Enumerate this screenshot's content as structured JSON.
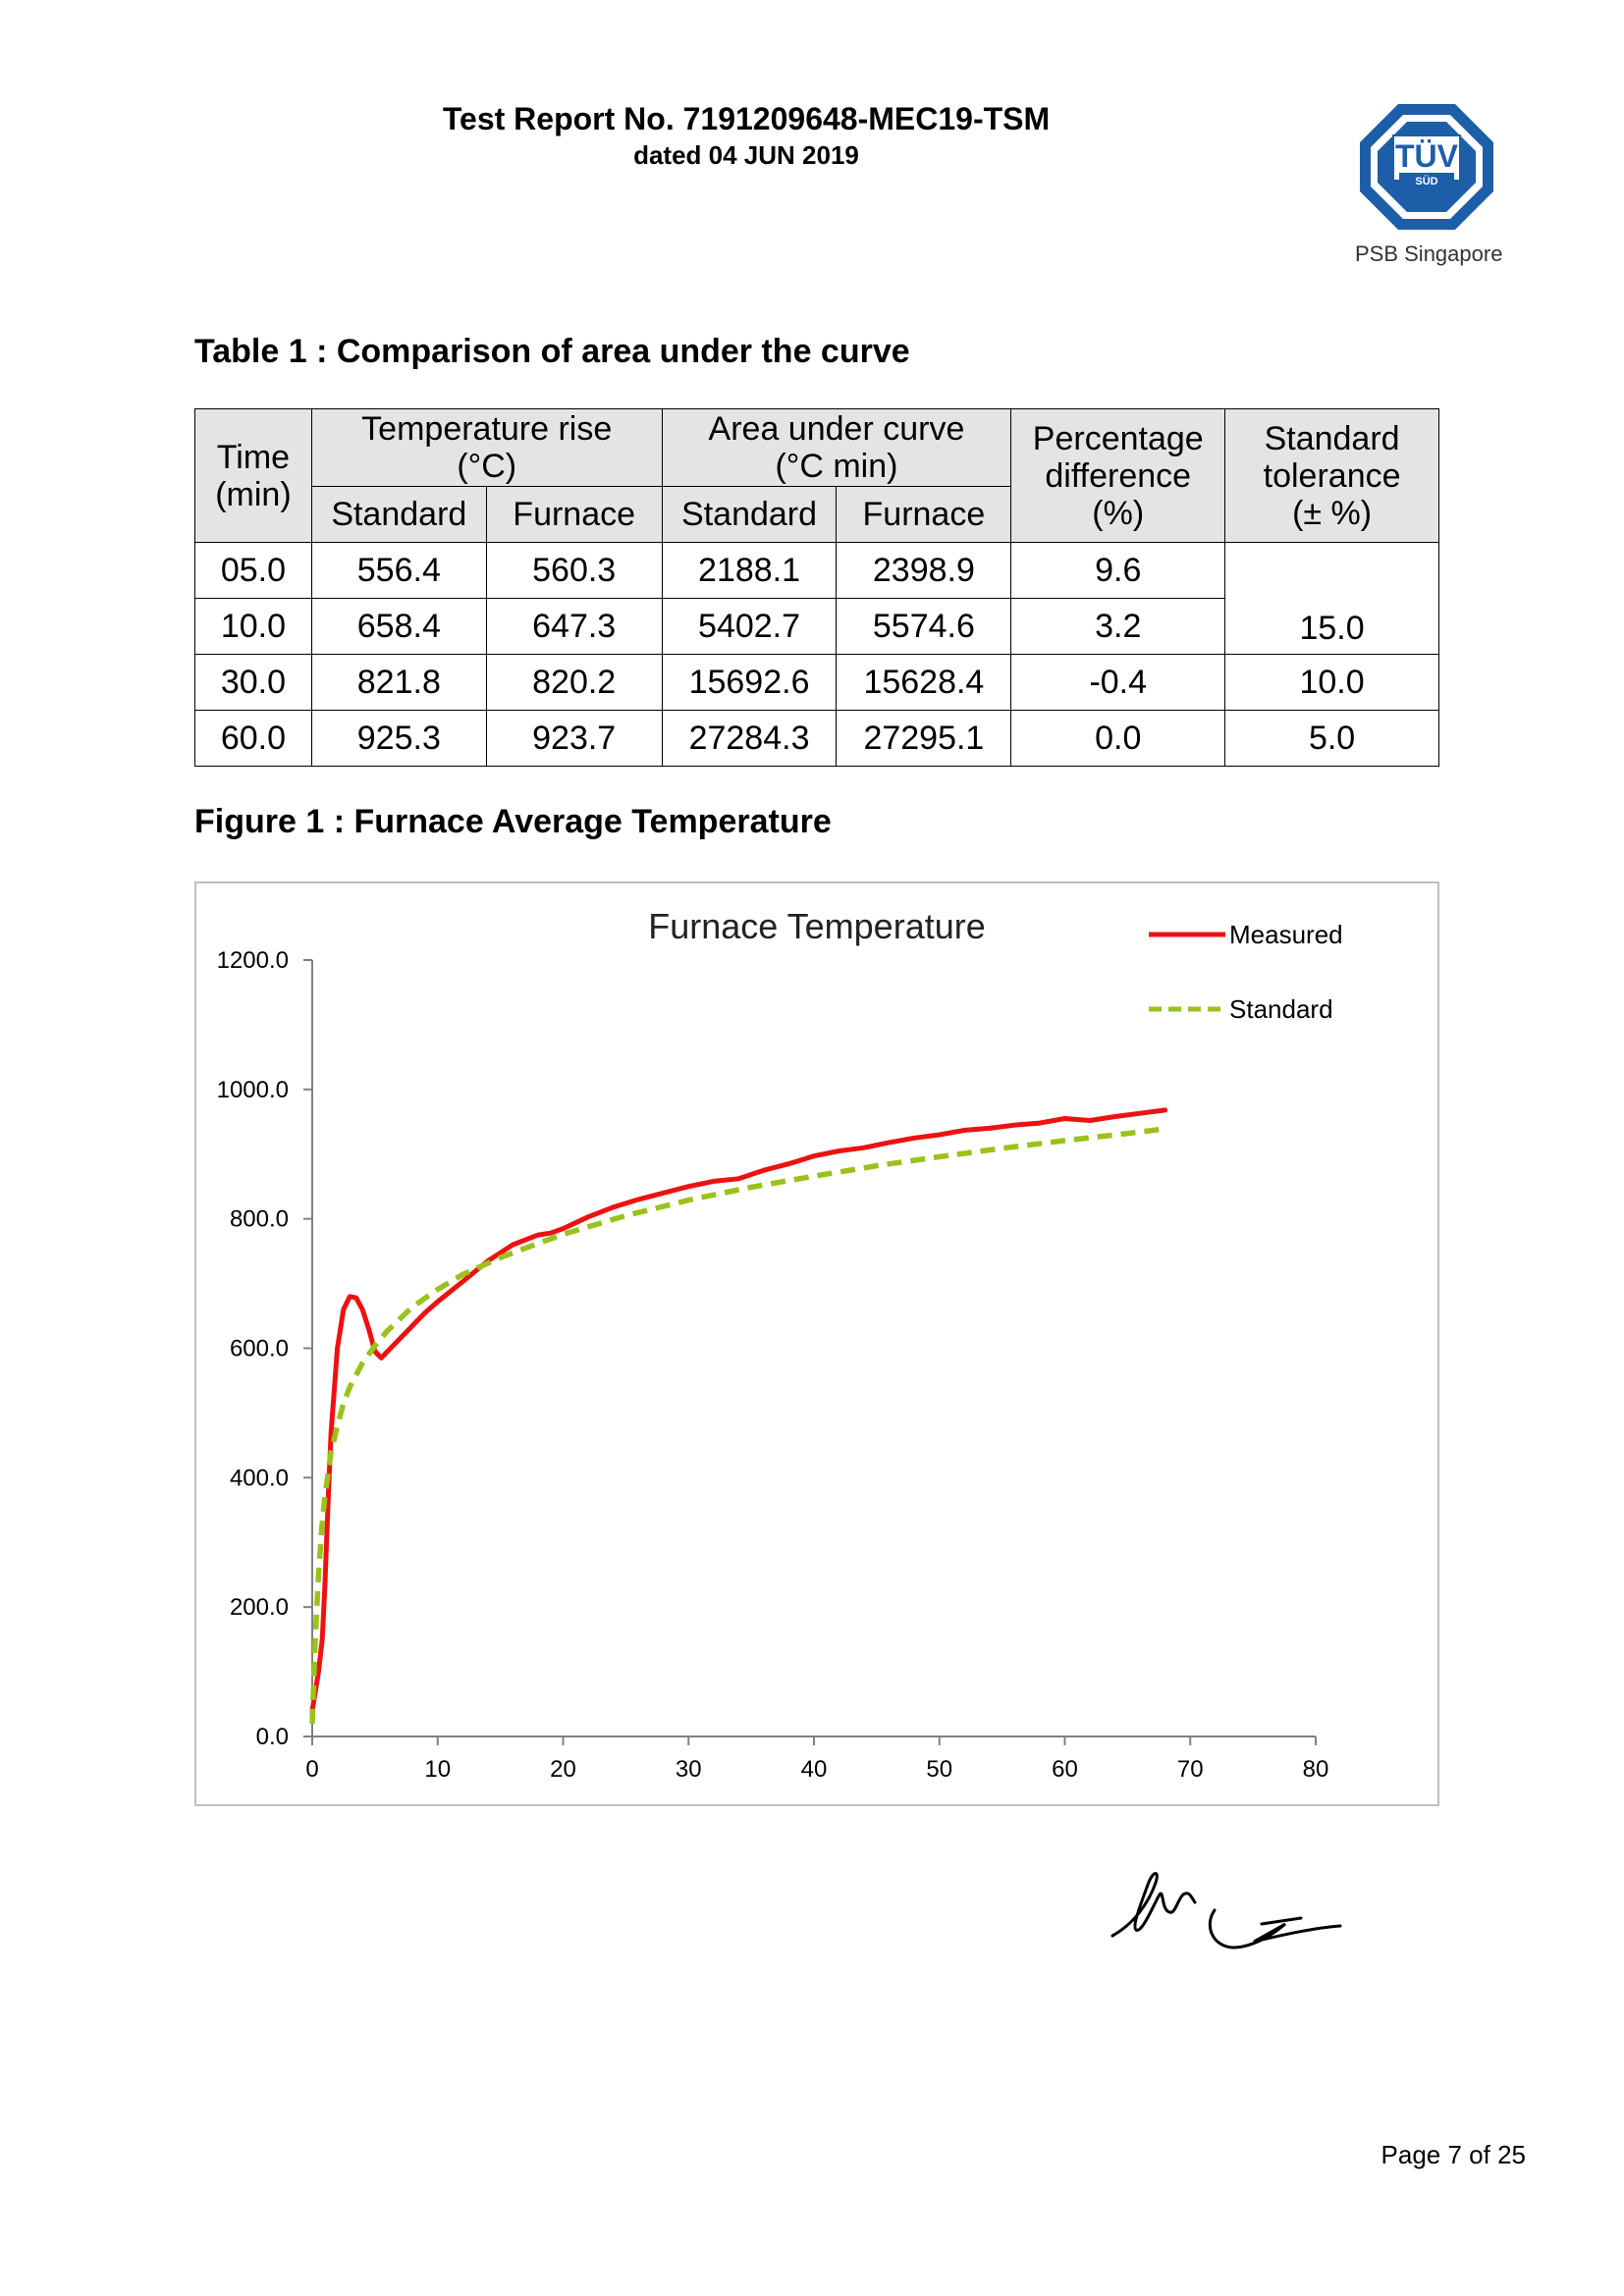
{
  "header": {
    "title": "Test Report No. 7191209648-MEC19-TSM",
    "date": "dated 04 JUN 2019",
    "logo_text": "TÜV",
    "logo_sub_badge": "SÜD",
    "logo_caption": "PSB Singapore"
  },
  "table_caption": "Table 1 : Comparison of area under the curve",
  "table": {
    "col_time_line1": "Time",
    "col_time_line2": "(min)",
    "col_temp_line1": "Temperature rise",
    "col_temp_line2": "(°C)",
    "col_area_line1": "Area under curve",
    "col_area_line2": "(°C min)",
    "col_pct_line1": "Percentage",
    "col_pct_line2": "difference",
    "col_pct_line3": "(%)",
    "col_tol_line1": "Standard",
    "col_tol_line2": "tolerance",
    "col_tol_line3": "(± %)",
    "sub_standard": "Standard",
    "sub_furnace": "Furnace",
    "rows": [
      {
        "time": "05.0",
        "temp_std": "556.4",
        "temp_furn": "560.3",
        "area_std": "2188.1",
        "area_furn": "2398.9",
        "pct": "9.6"
      },
      {
        "time": "10.0",
        "temp_std": "658.4",
        "temp_furn": "647.3",
        "area_std": "5402.7",
        "area_furn": "5574.6",
        "pct": "3.2"
      },
      {
        "time": "30.0",
        "temp_std": "821.8",
        "temp_furn": "820.2",
        "area_std": "15692.6",
        "area_furn": "15628.4",
        "pct": "-0.4"
      },
      {
        "time": "60.0",
        "temp_std": "925.3",
        "temp_furn": "923.7",
        "area_std": "27284.3",
        "area_furn": "27295.1",
        "pct": "0.0"
      }
    ],
    "tolerance_rows_1_2": "15.0",
    "tolerance_row_3": "10.0",
    "tolerance_row_4": "5.0"
  },
  "figure_caption": "Figure 1 : Furnace Average Temperature",
  "chart_data": {
    "type": "line",
    "title": "Furnace Temperature",
    "xlabel": "",
    "ylabel": "",
    "xlim": [
      0,
      80
    ],
    "ylim": [
      0,
      1200
    ],
    "x_ticks": [
      "0",
      "10",
      "20",
      "30",
      "40",
      "50",
      "60",
      "70",
      "80"
    ],
    "y_ticks": [
      "0.0",
      "200.0",
      "400.0",
      "600.0",
      "800.0",
      "1000.0",
      "1200.0"
    ],
    "grid": false,
    "legend_position": "top-right",
    "series": [
      {
        "name": "Measured",
        "color": "#ee1111",
        "dash": "solid",
        "points": [
          [
            0,
            40
          ],
          [
            0.5,
            100
          ],
          [
            0.8,
            150
          ],
          [
            1.0,
            230
          ],
          [
            1.3,
            380
          ],
          [
            1.5,
            470
          ],
          [
            2,
            600
          ],
          [
            2.5,
            660
          ],
          [
            3,
            680
          ],
          [
            3.5,
            678
          ],
          [
            4,
            660
          ],
          [
            4.5,
            630
          ],
          [
            5,
            595
          ],
          [
            5.5,
            585
          ],
          [
            6,
            595
          ],
          [
            7,
            615
          ],
          [
            8,
            635
          ],
          [
            9,
            655
          ],
          [
            10,
            672
          ],
          [
            12,
            703
          ],
          [
            14,
            735
          ],
          [
            16,
            760
          ],
          [
            18,
            775
          ],
          [
            19,
            778
          ],
          [
            20,
            785
          ],
          [
            22,
            803
          ],
          [
            24,
            818
          ],
          [
            26,
            830
          ],
          [
            28,
            840
          ],
          [
            30,
            850
          ],
          [
            32,
            858
          ],
          [
            34,
            862
          ],
          [
            36,
            875
          ],
          [
            38,
            885
          ],
          [
            40,
            897
          ],
          [
            42,
            905
          ],
          [
            44,
            910
          ],
          [
            46,
            918
          ],
          [
            48,
            925
          ],
          [
            50,
            930
          ],
          [
            52,
            937
          ],
          [
            54,
            940
          ],
          [
            56,
            945
          ],
          [
            58,
            948
          ],
          [
            60,
            955
          ],
          [
            62,
            952
          ],
          [
            64,
            958
          ],
          [
            66,
            963
          ],
          [
            68,
            968
          ]
        ]
      },
      {
        "name": "Standard",
        "color": "#99c21b",
        "dash": "dashed",
        "points": [
          [
            0,
            20
          ],
          [
            0.25,
            155
          ],
          [
            0.5,
            250
          ],
          [
            0.75,
            320
          ],
          [
            1,
            370
          ],
          [
            1.5,
            440
          ],
          [
            2,
            480
          ],
          [
            2.5,
            515
          ],
          [
            3,
            540
          ],
          [
            4,
            577
          ],
          [
            5,
            604
          ],
          [
            6,
            627
          ],
          [
            8,
            664
          ],
          [
            10,
            691
          ],
          [
            12,
            714
          ],
          [
            15,
            740
          ],
          [
            18,
            762
          ],
          [
            20,
            776
          ],
          [
            25,
            805
          ],
          [
            30,
            829
          ],
          [
            35,
            849
          ],
          [
            40,
            866
          ],
          [
            45,
            882
          ],
          [
            50,
            896
          ],
          [
            55,
            909
          ],
          [
            60,
            921
          ],
          [
            65,
            932
          ],
          [
            68,
            939
          ]
        ]
      }
    ]
  },
  "footer": {
    "page": "Page 7 of 25"
  },
  "colors": {
    "logo_blue": "#1d5ea8",
    "header_fill": "#e4e4e4",
    "measured": "#ee1111",
    "standard": "#99c21b"
  }
}
